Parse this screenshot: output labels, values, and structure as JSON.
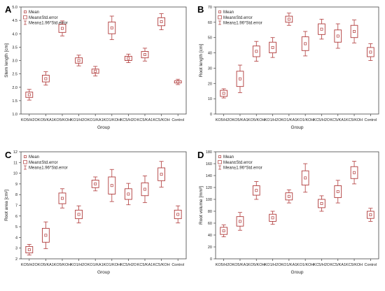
{
  "colors": {
    "box": "#b03a3a",
    "axis": "#444444",
    "background": "#ffffff"
  },
  "chart_data": [
    {
      "type": "box",
      "panel_label": "A",
      "xlabel": "Group",
      "ylabel": "Stem length [cm]",
      "ylim": [
        1.0,
        5.0
      ],
      "yticks": [
        1.0,
        1.5,
        2.0,
        2.5,
        3.0,
        3.5,
        4.0,
        4.5,
        5.0
      ],
      "ytick_labels": [
        "1.0",
        "1.5",
        "2.0",
        "2.5",
        "3.0",
        "3.5",
        "4.0",
        "4.5",
        "5.0"
      ],
      "legend": [
        "Mean",
        "Mean±Std.error",
        "Mean±1.96*Std.error"
      ],
      "legend_position": "top-left",
      "categories": [
        "KO5/H2O",
        "KO5/KA1",
        "KO5/KOH",
        "KO1/H2O",
        "KO1/KA1",
        "KO1/KOH",
        "KC5/H2O",
        "KC5/KA1",
        "KC5/KOH",
        "Control"
      ],
      "mean": [
        1.72,
        2.32,
        4.2,
        3.0,
        2.6,
        4.22,
        3.08,
        3.22,
        4.45,
        2.2
      ],
      "se_lo": [
        1.62,
        2.2,
        4.05,
        2.9,
        2.52,
        4.0,
        3.0,
        3.1,
        4.3,
        2.16
      ],
      "se_hi": [
        1.82,
        2.45,
        4.35,
        3.1,
        2.68,
        4.44,
        3.16,
        3.34,
        4.6,
        2.24
      ],
      "ci_lo": [
        1.52,
        2.08,
        3.92,
        2.8,
        2.42,
        3.78,
        2.92,
        2.98,
        4.15,
        2.1
      ],
      "ci_hi": [
        1.92,
        2.58,
        4.48,
        3.2,
        2.78,
        4.66,
        3.24,
        3.46,
        4.75,
        2.3
      ]
    },
    {
      "type": "box",
      "panel_label": "B",
      "xlabel": "Group",
      "ylabel": "Root length [cm]",
      "ylim": [
        0,
        70
      ],
      "yticks": [
        0,
        10,
        20,
        30,
        40,
        50,
        60,
        70
      ],
      "ytick_labels": [
        "0",
        "10",
        "20",
        "30",
        "40",
        "50",
        "60",
        "70"
      ],
      "legend": [
        "Mean",
        "Mean±Std.error",
        "Mean±1.96*Std.error"
      ],
      "legend_position": "top-left",
      "categories": [
        "KO5/H2O",
        "KO5/KA1",
        "KO5/KOH",
        "KO1/H2O",
        "KO1/KA1",
        "KO1/KOH",
        "KC5/H2O",
        "KC5/KA1",
        "KC5/KOH",
        "Control"
      ],
      "mean": [
        13.5,
        23.0,
        41.0,
        43.5,
        62.0,
        46.0,
        55.5,
        51.0,
        54.0,
        40.5
      ],
      "se_lo": [
        11.5,
        18.0,
        37.5,
        40.0,
        60.0,
        41.5,
        52.0,
        47.0,
        50.0,
        37.5
      ],
      "se_hi": [
        15.5,
        28.0,
        44.5,
        47.0,
        64.0,
        50.5,
        59.0,
        55.0,
        58.0,
        43.5
      ],
      "ci_lo": [
        10.5,
        14.0,
        34.5,
        37.0,
        58.0,
        38.0,
        49.0,
        43.0,
        46.5,
        35.0
      ],
      "ci_hi": [
        16.5,
        32.0,
        47.5,
        50.0,
        66.0,
        54.0,
        62.0,
        59.0,
        61.5,
        46.0
      ]
    },
    {
      "type": "box",
      "panel_label": "C",
      "xlabel": "Group",
      "ylabel": "Root area [cm²]",
      "ylim": [
        2,
        12
      ],
      "yticks": [
        2,
        3,
        4,
        5,
        6,
        7,
        8,
        9,
        10,
        11,
        12
      ],
      "ytick_labels": [
        "2",
        "3",
        "4",
        "5",
        "6",
        "7",
        "8",
        "9",
        "10",
        "11",
        "12"
      ],
      "legend": [
        "Mean",
        "Mean±Std.error",
        "Mean±1.96*Std.error"
      ],
      "legend_position": "top-left",
      "categories": [
        "KO5/H2O",
        "KO5/KA1",
        "KO5/KOH",
        "KO1/H2O",
        "KO1/KA1",
        "KO1/KOH",
        "KC5/H2O",
        "KC5/KA1",
        "KC5/KOH",
        "Control"
      ],
      "mean": [
        2.85,
        4.2,
        7.65,
        6.15,
        9.0,
        8.85,
        8.05,
        8.5,
        9.9,
        6.15
      ],
      "se_lo": [
        2.55,
        3.55,
        7.15,
        5.75,
        8.65,
        8.05,
        7.55,
        7.9,
        9.3,
        5.75
      ],
      "se_hi": [
        3.15,
        4.85,
        8.15,
        6.55,
        9.35,
        9.65,
        8.55,
        9.1,
        10.5,
        6.55
      ],
      "ci_lo": [
        2.35,
        2.95,
        6.75,
        5.35,
        8.35,
        7.35,
        7.05,
        7.25,
        8.7,
        5.35
      ],
      "ci_hi": [
        3.35,
        5.45,
        8.55,
        6.95,
        9.65,
        10.35,
        9.05,
        9.75,
        11.1,
        6.95
      ]
    },
    {
      "type": "box",
      "panel_label": "D",
      "xlabel": "Group",
      "ylabel": "Root volume [mm³]",
      "ylim": [
        0,
        180
      ],
      "yticks": [
        0,
        20,
        40,
        60,
        80,
        100,
        120,
        140,
        160,
        180
      ],
      "ytick_labels": [
        "0",
        "20",
        "40",
        "60",
        "80",
        "100",
        "120",
        "140",
        "160",
        "180"
      ],
      "legend": [
        "Mean",
        "Mean±Std.error",
        "Mean±1.96*Std.error"
      ],
      "legend_position": "top-left",
      "categories": [
        "KO5/H2O",
        "KO5/KA1",
        "KO5/KOH",
        "KO1/H2O",
        "KO1/KA1",
        "KO1/KOH",
        "KC5/H2O",
        "KC5/KA1",
        "KC5/KOH",
        "Control"
      ],
      "mean": [
        47,
        63,
        115,
        69,
        105,
        136,
        93,
        113,
        145,
        74
      ],
      "se_lo": [
        41,
        55,
        107,
        63,
        99,
        124,
        86,
        103,
        135,
        68
      ],
      "se_hi": [
        53,
        71,
        123,
        75,
        111,
        148,
        100,
        123,
        155,
        80
      ],
      "ci_lo": [
        37,
        48,
        100,
        58,
        94,
        112,
        80,
        94,
        126,
        63
      ],
      "ci_hi": [
        57,
        78,
        130,
        80,
        116,
        160,
        106,
        132,
        164,
        85
      ]
    }
  ]
}
